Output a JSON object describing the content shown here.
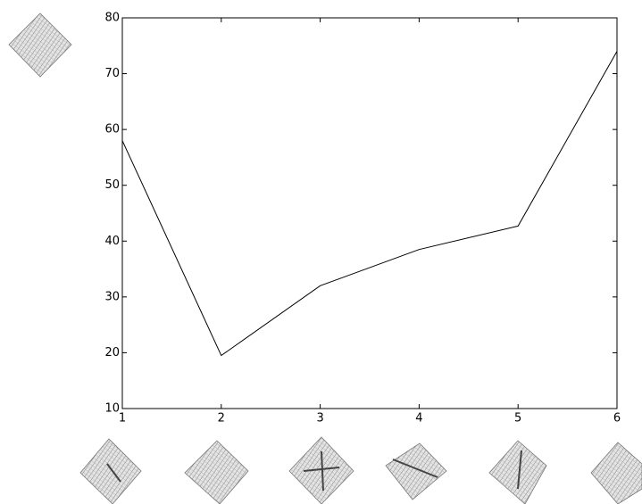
{
  "chart_data": {
    "type": "line",
    "x": [
      1,
      2,
      3,
      4,
      5,
      6
    ],
    "values": [
      58,
      19.5,
      32,
      38.5,
      42.7,
      74
    ],
    "color": "#000000",
    "xlim": [
      1,
      6
    ],
    "xticks": [
      1,
      2,
      3,
      4,
      5,
      6
    ],
    "ylim": [
      10,
      80
    ],
    "yticks": [
      10,
      20,
      30,
      40,
      50,
      60,
      70,
      80
    ],
    "grid": false
  }
}
